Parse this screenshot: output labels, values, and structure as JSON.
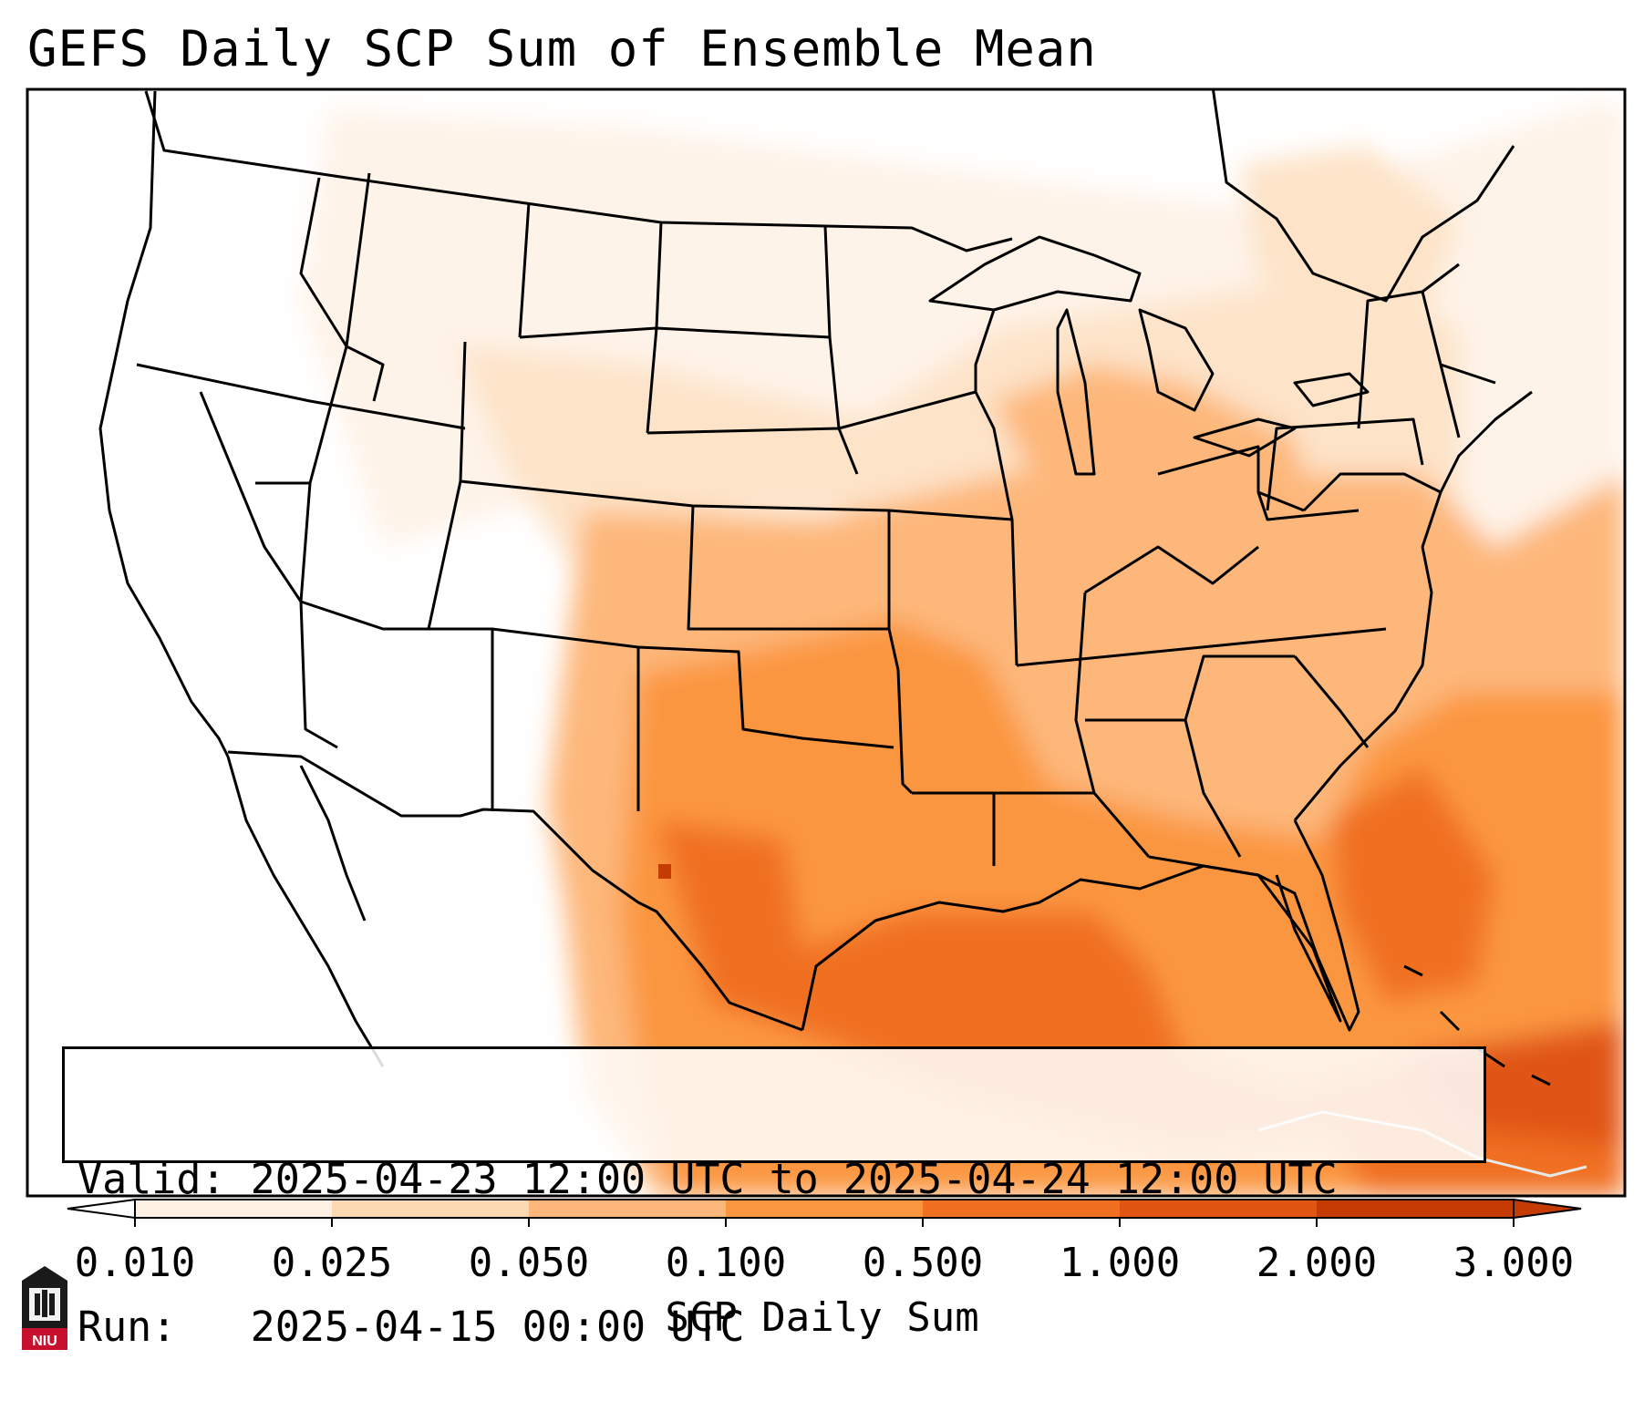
{
  "title": "GEFS Daily SCP Sum of Ensemble Mean",
  "info": {
    "valid_label": "Valid:",
    "valid_value": "2025-04-23 12:00 UTC to 2025-04-24 12:00 UTC",
    "run_label": "Run:",
    "run_value": "2025-04-15 00:00 UTC"
  },
  "colorbar": {
    "label": "SCP Daily Sum",
    "ticks": [
      "0.010",
      "0.025",
      "0.050",
      "0.100",
      "0.500",
      "1.000",
      "2.000",
      "3.000"
    ],
    "colors": [
      "#fef0e3",
      "#fdd9b3",
      "#fdb77a",
      "#fb9640",
      "#f07020",
      "#e05512",
      "#c43c04"
    ],
    "extend": "both"
  },
  "logo": {
    "text": "NIU",
    "colors": {
      "body": "#1a1a1a",
      "accent": "#c8102e"
    }
  },
  "map": {
    "projection": "Lambert Conformal",
    "region": "CONUS",
    "shading_colors": {
      "none": "#ffffff",
      "very_light": "#fef3e8",
      "light": "#fde3c8",
      "medium": "#fdb77a",
      "high": "#fb9640",
      "very_high": "#f07020",
      "max": "#e05512",
      "peak": "#c43c04"
    }
  }
}
